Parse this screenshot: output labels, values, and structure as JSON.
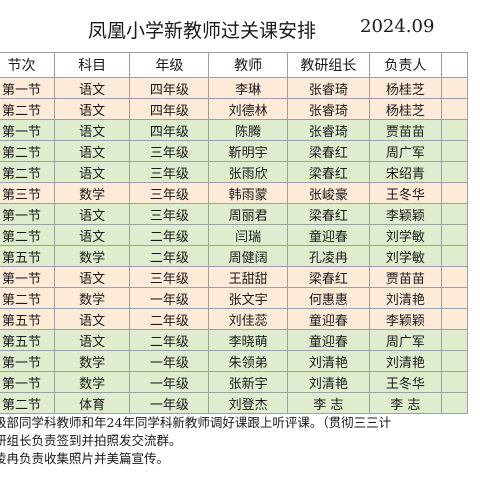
{
  "title": "凤凰小学新教师过关课安排",
  "date": "2024.09",
  "headers": [
    "节次",
    "科目",
    "年级",
    "教师",
    "教研组长",
    "负责人"
  ],
  "rows": [
    {
      "band": "y",
      "cells": [
        "第一节",
        "语文",
        "四年级",
        "李琳",
        "张睿琦",
        "杨桂芝"
      ]
    },
    {
      "band": "y",
      "cells": [
        "第二节",
        "语文",
        "四年级",
        "刘德林",
        "张睿琦",
        "杨桂芝"
      ]
    },
    {
      "band": "g",
      "cells": [
        "第一节",
        "语文",
        "四年级",
        "陈腾",
        "张睿琦",
        "贾苗苗"
      ]
    },
    {
      "band": "g",
      "cells": [
        "第二节",
        "语文",
        "三年级",
        "靳明宇",
        "梁春红",
        "周广军"
      ]
    },
    {
      "band": "g",
      "cells": [
        "第二节",
        "语文",
        "三年级",
        "张雨欣",
        "梁春红",
        "宋绍青"
      ]
    },
    {
      "band": "y",
      "cells": [
        "第三节",
        "数学",
        "三年级",
        "韩雨蒙",
        "张峻豪",
        "王冬华"
      ]
    },
    {
      "band": "g",
      "cells": [
        "第一节",
        "语文",
        "三年级",
        "周丽君",
        "梁春红",
        "李颖颖"
      ]
    },
    {
      "band": "g",
      "cells": [
        "第二节",
        "语文",
        "二年级",
        "闫瑞",
        "童迎春",
        "刘学敏"
      ]
    },
    {
      "band": "g",
      "cells": [
        "第五节",
        "数学",
        "二年级",
        "周健阔",
        "孔凌冉",
        "刘学敏"
      ]
    },
    {
      "band": "y",
      "cells": [
        "第一节",
        "语文",
        "三年级",
        "王甜甜",
        "梁春红",
        "贾苗苗"
      ]
    },
    {
      "band": "y",
      "cells": [
        "第二节",
        "数学",
        "一年级",
        "张文宇",
        "何惠惠",
        "刘清艳"
      ]
    },
    {
      "band": "y",
      "cells": [
        "第五节",
        "语文",
        "二年级",
        "刘佳蕊",
        "童迎春",
        "李颖颖"
      ]
    },
    {
      "band": "g",
      "cells": [
        "第五节",
        "语文",
        "二年级",
        "李晓萌",
        "童迎春",
        "周广军"
      ]
    },
    {
      "band": "g",
      "cells": [
        "第一节",
        "数学",
        "一年级",
        "朱领弟",
        "刘清艳",
        "刘清艳"
      ]
    },
    {
      "band": "g",
      "cells": [
        "第一节",
        "数学",
        "一年级",
        "张新宇",
        "刘清艳",
        "王冬华"
      ]
    },
    {
      "band": "g",
      "cells": [
        "第二节",
        "体育",
        "一年级",
        "刘登杰",
        "李  志",
        "李  志"
      ]
    }
  ],
  "notes": [
    "级部同学科教师和年24年同学科新教师调好课跟上听评课。（贯彻三三计",
    "研组长负责签到并拍照发交流群。",
    "凌冉负责收集照片并美篇宣传。"
  ]
}
